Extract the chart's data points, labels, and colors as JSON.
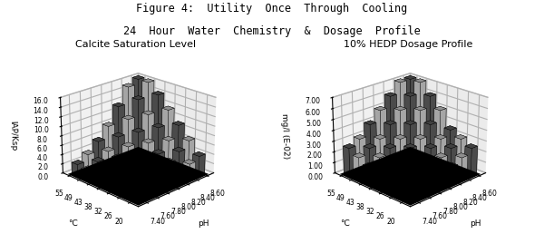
{
  "title_line1": "Figure 4:  Utility  Once  Through  Cooling",
  "title_line2": "24  Hour  Water  Chemistry  &  Dosage  Profile",
  "subplot1_title": "Calcite Saturation Level",
  "subplot2_title": "10% HEDP Dosage Profile",
  "ylabel1": "IAP/Ksp",
  "ylabel2": "mg/l (E-02)",
  "xlabel_ph": "pH",
  "ylabel_temp": "°C",
  "temp_values": [
    20,
    26,
    32,
    38,
    43,
    49,
    55
  ],
  "ph_values": [
    7.4,
    7.6,
    7.8,
    8.0,
    8.2,
    8.4,
    8.6
  ],
  "calcite_data": [
    [
      0.5,
      0.8,
      1.2,
      1.8,
      2.5,
      3.2,
      4.0
    ],
    [
      0.8,
      1.2,
      1.8,
      2.5,
      3.5,
      5.0,
      6.5
    ],
    [
      1.0,
      1.5,
      2.2,
      3.2,
      4.5,
      6.5,
      9.0
    ],
    [
      1.2,
      1.8,
      2.8,
      4.0,
      6.0,
      8.5,
      11.5
    ],
    [
      1.5,
      2.2,
      3.5,
      5.2,
      7.5,
      10.5,
      14.0
    ],
    [
      1.8,
      2.8,
      4.2,
      6.5,
      9.5,
      13.0,
      16.0
    ],
    [
      2.2,
      3.5,
      5.5,
      8.0,
      11.5,
      15.0,
      16.0
    ]
  ],
  "dosage_data": [
    [
      1.0,
      1.0,
      1.0,
      1.0,
      1.5,
      2.0,
      2.5
    ],
    [
      1.0,
      1.0,
      1.0,
      1.5,
      2.0,
      2.5,
      3.0
    ],
    [
      1.0,
      1.0,
      1.5,
      2.0,
      2.5,
      3.0,
      3.5
    ],
    [
      1.0,
      1.5,
      2.0,
      2.5,
      3.0,
      4.0,
      5.0
    ],
    [
      1.5,
      2.0,
      2.5,
      3.0,
      4.0,
      5.0,
      6.0
    ],
    [
      2.0,
      2.5,
      3.0,
      4.0,
      5.0,
      6.0,
      7.0
    ],
    [
      2.5,
      3.0,
      4.0,
      5.0,
      6.0,
      7.0,
      7.0
    ]
  ],
  "zlim1": [
    0,
    16
  ],
  "zticks1": [
    0.0,
    2.0,
    4.0,
    6.0,
    8.0,
    10.0,
    12.0,
    14.0,
    16.0
  ],
  "zlim2": [
    0,
    7
  ],
  "zticks2": [
    0.0,
    1.0,
    2.0,
    3.0,
    4.0,
    5.0,
    6.0,
    7.0
  ],
  "background_color": "#ffffff",
  "title_fontsize": 8.5,
  "subtitle_fontsize": 8,
  "tick_fontsize": 5.5,
  "axis_label_fontsize": 6.5,
  "elev": 22,
  "azim": 225
}
